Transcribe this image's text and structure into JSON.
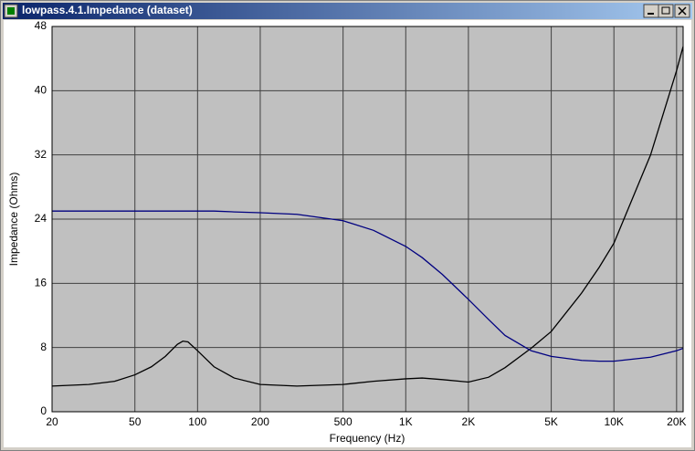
{
  "chart_data": {
    "type": "line",
    "title": "lowpass.4.1.Impedance (dataset)",
    "x_label": "Frequency (Hz)",
    "y_label": "Impedance (Ohms)",
    "x_log": true,
    "grid": true,
    "background": "#c0c0c0",
    "xlim": [
      20,
      21500
    ],
    "ylim": [
      0,
      48
    ],
    "xticks": [
      20,
      50,
      100,
      200,
      500,
      {
        "value": 1000,
        "label": "1K"
      },
      {
        "value": 2000,
        "label": "2K"
      },
      {
        "value": 5000,
        "label": "5K"
      },
      {
        "value": 10000,
        "label": "10K"
      },
      {
        "value": 20000,
        "label": "20K"
      }
    ],
    "yticks": [
      0,
      8,
      16,
      24,
      32,
      40,
      48
    ],
    "x": [
      20,
      30,
      40,
      50,
      60,
      70,
      80,
      85,
      90,
      100,
      120,
      150,
      200,
      300,
      500,
      700,
      1000,
      1200,
      1500,
      2000,
      2500,
      3000,
      4000,
      5000,
      7000,
      8500,
      10000,
      15000,
      20000,
      21500
    ],
    "series": [
      {
        "color": "#000000",
        "values": [
          3.2,
          3.4,
          3.8,
          4.6,
          5.6,
          6.9,
          8.4,
          8.8,
          8.7,
          7.6,
          5.6,
          4.2,
          3.4,
          3.2,
          3.4,
          3.8,
          4.1,
          4.2,
          4.0,
          3.7,
          4.3,
          5.5,
          7.9,
          10.0,
          14.8,
          18.0,
          21.0,
          32.0,
          42.5,
          45.5
        ]
      },
      {
        "color": "#000080",
        "values": [
          25.0,
          25.0,
          25.0,
          25.0,
          25.0,
          25.0,
          25.0,
          25.0,
          25.0,
          25.0,
          25.0,
          24.9,
          24.8,
          24.6,
          23.8,
          22.6,
          20.6,
          19.2,
          17.1,
          14.0,
          11.5,
          9.5,
          7.6,
          6.9,
          6.4,
          6.3,
          6.3,
          6.8,
          7.6,
          7.9
        ]
      }
    ]
  }
}
